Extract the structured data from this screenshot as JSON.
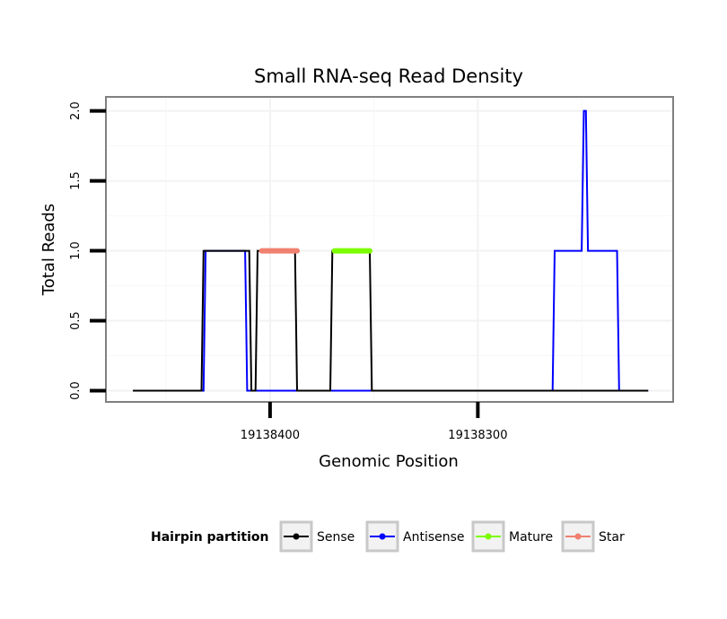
{
  "chart_data": {
    "type": "line",
    "title": "Small RNA-seq Read Density",
    "xlabel": "Genomic Position",
    "ylabel": "Total Reads",
    "x_reversed": true,
    "xlim": [
      19138479,
      19138206
    ],
    "ylim": [
      -0.08,
      2.1
    ],
    "x_ticks": [
      19138400,
      19138300
    ],
    "x_tick_labels": [
      "19138400",
      "19138300"
    ],
    "y_ticks": [
      0,
      0.5,
      1,
      1.5,
      2
    ],
    "y_tick_labels": [
      "0.0",
      "0.5",
      "1.0",
      "1.5",
      "2.0"
    ],
    "grid": true,
    "legend": {
      "title": "Hairpin partition",
      "position": "bottom",
      "entries": [
        {
          "name": "Sense",
          "color": "#000000"
        },
        {
          "name": "Antisense",
          "color": "#0000ff"
        },
        {
          "name": "Mature",
          "color": "#7cfc00"
        },
        {
          "name": "Star",
          "color": "#f08070"
        }
      ]
    },
    "series": [
      {
        "name": "Sense",
        "color": "#000000",
        "x": [
          19138466,
          19138433,
          19138432,
          19138410,
          19138409,
          19138407,
          19138406,
          19138388,
          19138387,
          19138371,
          19138370,
          19138352,
          19138351,
          19138218
        ],
        "y": [
          0,
          0,
          1,
          1,
          0,
          0,
          1,
          1,
          0,
          0,
          1,
          1,
          0,
          0
        ]
      },
      {
        "name": "Antisense",
        "color": "#0000ff",
        "x": [
          19138466,
          19138432,
          19138431,
          19138412,
          19138411,
          19138264,
          19138263,
          19138250,
          19138249,
          19138248,
          19138247,
          19138233,
          19138232,
          19138218
        ],
        "y": [
          0,
          0,
          1,
          1,
          0,
          0,
          1,
          1,
          2,
          2,
          1,
          1,
          0,
          0
        ]
      },
      {
        "name": "Mature",
        "color": "#7cfc00",
        "x": [
          19138369,
          19138352
        ],
        "y": [
          1,
          1
        ]
      },
      {
        "name": "Star",
        "color": "#f08070",
        "x": [
          19138404,
          19138387
        ],
        "y": [
          1,
          1
        ]
      }
    ]
  }
}
